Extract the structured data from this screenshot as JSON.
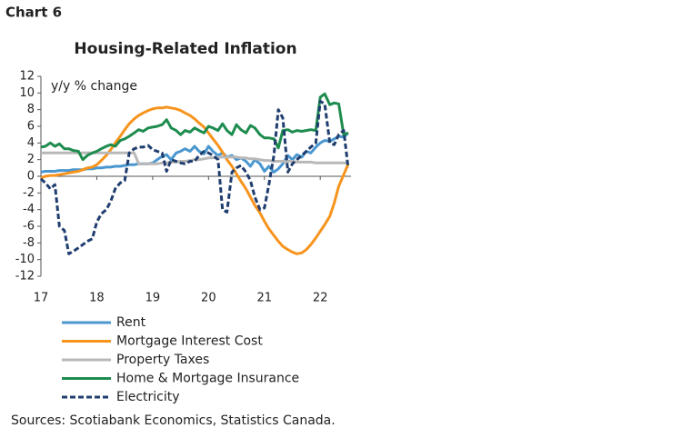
{
  "chart_data": {
    "type": "line",
    "label": "Chart 6",
    "title": "Housing-Related Inflation",
    "annotation": "y/y % change",
    "source": "Sources: Scotiabank Economics, Statistics Canada.",
    "x": [
      17,
      17.08,
      17.17,
      17.25,
      17.33,
      17.42,
      17.5,
      17.58,
      17.67,
      17.75,
      17.83,
      17.92,
      18,
      18.08,
      18.17,
      18.25,
      18.33,
      18.42,
      18.5,
      18.58,
      18.67,
      18.75,
      18.83,
      18.92,
      19,
      19.08,
      19.17,
      19.25,
      19.33,
      19.42,
      19.5,
      19.58,
      19.67,
      19.75,
      19.83,
      19.92,
      20,
      20.08,
      20.17,
      20.25,
      20.33,
      20.42,
      20.5,
      20.58,
      20.67,
      20.75,
      20.83,
      20.92,
      21,
      21.08,
      21.17,
      21.25,
      21.33,
      21.42,
      21.5,
      21.58,
      21.67,
      21.75,
      21.83,
      21.92,
      22,
      22.08,
      22.17,
      22.25,
      22.33,
      22.42,
      22.5
    ],
    "xlim": [
      17,
      22.55
    ],
    "xticks": [
      17,
      18,
      19,
      20,
      21,
      22
    ],
    "ylim": [
      -12,
      12
    ],
    "yticks": [
      12,
      10,
      8,
      6,
      4,
      2,
      0,
      -2,
      -4,
      -6,
      -8,
      -10,
      -12
    ],
    "series": [
      {
        "name": "Rent",
        "color": "#4a97d0",
        "values": [
          0.5,
          0.6,
          0.6,
          0.6,
          0.7,
          0.7,
          0.7,
          0.8,
          0.8,
          0.8,
          0.9,
          0.9,
          1.0,
          1.0,
          1.1,
          1.1,
          1.2,
          1.2,
          1.3,
          1.4,
          1.4,
          1.5,
          1.5,
          1.5,
          1.6,
          2.0,
          2.4,
          2.6,
          2.0,
          2.8,
          3.0,
          3.3,
          3.0,
          3.6,
          3.0,
          2.7,
          3.6,
          3.0,
          2.5,
          2.8,
          2.3,
          2.5,
          2.0,
          2.2,
          1.8,
          1.2,
          2.0,
          1.5,
          0.6,
          1.2,
          0.5,
          0.9,
          1.5,
          2.5,
          2.0,
          2.6,
          2.3,
          3.0,
          2.8,
          3.5,
          4.0,
          4.3,
          4.2,
          4.5,
          4.8,
          4.7,
          5.2
        ]
      },
      {
        "name": "Mortgage Interest Cost",
        "color": "#f7941d",
        "values": [
          -0.2,
          0,
          0.1,
          0.1,
          0.2,
          0.3,
          0.4,
          0.5,
          0.6,
          0.8,
          1.0,
          1.1,
          1.4,
          1.9,
          2.5,
          3.2,
          4.0,
          4.8,
          5.6,
          6.3,
          6.9,
          7.3,
          7.6,
          7.9,
          8.1,
          8.2,
          8.2,
          8.3,
          8.2,
          8.1,
          7.9,
          7.6,
          7.3,
          6.9,
          6.4,
          5.9,
          5.2,
          4.5,
          3.7,
          2.9,
          2.0,
          1.2,
          0.3,
          -0.6,
          -1.5,
          -2.5,
          -3.5,
          -4.4,
          -5.4,
          -6.3,
          -7.1,
          -7.8,
          -8.4,
          -8.8,
          -9.1,
          -9.3,
          -9.2,
          -8.8,
          -8.2,
          -7.4,
          -6.6,
          -5.8,
          -4.8,
          -3.2,
          -1.2,
          0.2,
          1.5
        ]
      },
      {
        "name": "Property Taxes",
        "color": "#b8b8b8",
        "values": [
          2.8,
          2.8,
          2.8,
          2.8,
          2.8,
          2.8,
          2.8,
          2.8,
          2.8,
          2.8,
          2.8,
          2.8,
          2.8,
          2.8,
          2.8,
          2.8,
          2.8,
          2.8,
          2.8,
          2.8,
          2.8,
          1.5,
          1.5,
          1.5,
          1.5,
          1.5,
          1.6,
          1.6,
          1.7,
          1.7,
          1.8,
          1.8,
          1.9,
          2.0,
          2.0,
          2.1,
          2.2,
          2.2,
          2.3,
          2.3,
          2.3,
          2.3,
          2.3,
          2.2,
          2.2,
          2.1,
          2.1,
          2.0,
          1.9,
          1.9,
          1.8,
          1.8,
          1.8,
          1.8,
          1.8,
          1.7,
          1.7,
          1.7,
          1.7,
          1.6,
          1.6,
          1.6,
          1.6,
          1.6,
          1.6,
          1.6,
          1.6
        ]
      },
      {
        "name": "Home & Mortgage Insurance",
        "color": "#1e8c4e",
        "values": [
          3.5,
          3.6,
          4.0,
          3.6,
          3.9,
          3.3,
          3.3,
          3.1,
          3.0,
          2.0,
          2.5,
          2.8,
          3.0,
          3.3,
          3.6,
          3.8,
          3.6,
          4.3,
          4.5,
          4.8,
          5.2,
          5.6,
          5.4,
          5.8,
          5.9,
          6.0,
          6.2,
          6.8,
          5.8,
          5.5,
          5.0,
          5.5,
          5.3,
          5.8,
          5.5,
          5.2,
          6.0,
          5.8,
          5.5,
          6.3,
          5.5,
          5.0,
          6.2,
          5.6,
          5.2,
          6.1,
          5.8,
          5.0,
          4.6,
          4.6,
          4.5,
          3.4,
          5.5,
          5.6,
          5.3,
          5.5,
          5.4,
          5.5,
          5.6,
          5.5,
          9.5,
          9.9,
          8.6,
          8.8,
          8.7,
          5.0,
          5.2
        ]
      },
      {
        "name": "Electricity",
        "color": "#1f3d6e",
        "line_style": "dashed",
        "values": [
          -0.3,
          -0.8,
          -1.5,
          -1.0,
          -6.0,
          -6.5,
          -9.3,
          -9.0,
          -8.6,
          -8.2,
          -7.8,
          -7.5,
          -5.5,
          -4.5,
          -4.0,
          -3.0,
          -1.5,
          -0.8,
          -0.5,
          2.8,
          3.3,
          3.5,
          3.5,
          3.7,
          3.2,
          3.0,
          2.8,
          0.6,
          2.0,
          1.8,
          1.6,
          1.5,
          1.8,
          1.8,
          2.5,
          3.0,
          2.8,
          2.5,
          2.0,
          -4.0,
          -4.3,
          0.5,
          1.0,
          1.3,
          0.5,
          -0.5,
          -2.5,
          -4.0,
          -3.8,
          -1.0,
          2.5,
          8.0,
          7.0,
          0.5,
          1.5,
          2.0,
          2.5,
          3.0,
          3.5,
          4.0,
          9.0,
          8.7,
          4.0,
          3.8,
          5.0,
          5.5,
          1.0
        ]
      }
    ]
  }
}
